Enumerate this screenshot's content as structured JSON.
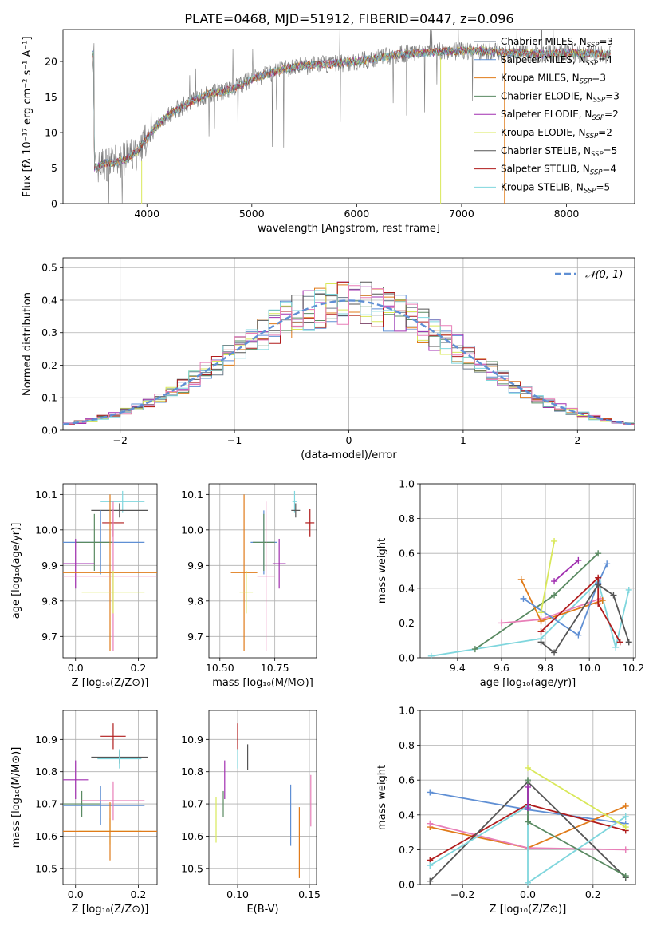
{
  "figure_title": "PLATE=0468, MJD=51912, FIBERID=0447, z=0.096",
  "colors": {
    "chabrier_miles": "#6c7a89",
    "salpeter_miles": "#5f8fd4",
    "kroupa_miles": "#e07b1a",
    "chabrier_elodie": "#5a8a62",
    "salpeter_elodie": "#a12fb0",
    "kroupa_elodie": "#d9e85a",
    "chabrier_stelib": "#555555",
    "salpeter_stelib": "#b01c1c",
    "kroupa_stelib": "#7fd6dd",
    "pink": "#e87fb8",
    "blue": "#5f8fd4",
    "normal_curve": "#5f8fd4"
  },
  "chart_data": [
    {
      "id": "spectrum",
      "type": "line",
      "title": "PLATE=0468, MJD=51912, FIBERID=0447, z=0.096",
      "xlabel": "wavelength [Angstrom, rest frame]",
      "ylabel": "Flux [fλ 10⁻¹⁷ erg cm⁻² s⁻¹ A⁻¹]",
      "xlim": [
        3200,
        8650
      ],
      "ylim": [
        0,
        24.5
      ],
      "xticks": [
        "4000",
        "5000",
        "6000",
        "7000",
        "8000"
      ],
      "yticks": [
        "0",
        "5",
        "10",
        "15",
        "20"
      ],
      "continuum": {
        "x": [
          3500,
          3600,
          3700,
          3800,
          3900,
          4000,
          4100,
          4200,
          4400,
          4600,
          4800,
          5000,
          5200,
          5400,
          5600,
          5800,
          6000,
          6200,
          6400,
          6600,
          6800,
          7000,
          7200,
          7400,
          7600,
          7800,
          8000,
          8200,
          8400
        ],
        "y": [
          5,
          5.6,
          5.8,
          6.2,
          7.2,
          9.2,
          11,
          12.5,
          14.2,
          15.5,
          16,
          17.5,
          18.5,
          19.2,
          19.5,
          19.7,
          20,
          20.5,
          21,
          21.2,
          21.4,
          21.5,
          21.5,
          21.3,
          21.2,
          21.0,
          21.2,
          21.1,
          21.0
        ]
      },
      "legend": [
        {
          "label": "Chabrier MILES, N",
          "sub": "SSP",
          "eq": "=3",
          "color": "#6c7a89"
        },
        {
          "label": "Salpeter MILES, N",
          "sub": "SSP",
          "eq": "=4",
          "color": "#5f8fd4"
        },
        {
          "label": "Kroupa MILES, N",
          "sub": "SSP",
          "eq": "=3",
          "color": "#e07b1a"
        },
        {
          "label": "Chabrier ELODIE, N",
          "sub": "SSP",
          "eq": "=3",
          "color": "#5a8a62"
        },
        {
          "label": "Salpeter ELODIE, N",
          "sub": "SSP",
          "eq": "=2",
          "color": "#a12fb0"
        },
        {
          "label": "Kroupa ELODIE, N",
          "sub": "SSP",
          "eq": "=2",
          "color": "#d9e85a"
        },
        {
          "label": "Chabrier STELIB, N",
          "sub": "SSP",
          "eq": "=5",
          "color": "#555555"
        },
        {
          "label": "Salpeter STELIB, N",
          "sub": "SSP",
          "eq": "=4",
          "color": "#b01c1c"
        },
        {
          "label": "Kroupa STELIB, N",
          "sub": "SSP",
          "eq": "=5",
          "color": "#7fd6dd"
        }
      ],
      "legend_position": "right"
    },
    {
      "id": "residuals",
      "type": "histogram",
      "xlabel": "(data-model)/error",
      "ylabel": "Normed distribution",
      "xlim": [
        -2.5,
        2.5
      ],
      "ylim": [
        0,
        0.53
      ],
      "xticks": [
        "−2",
        "−1",
        "0",
        "1",
        "2"
      ],
      "yticks": [
        "0.0",
        "0.1",
        "0.2",
        "0.3",
        "0.4",
        "0.5"
      ],
      "legend": [
        {
          "label": "𝒩(0, 1)",
          "style": "dashed",
          "color": "#5f8fd4"
        }
      ],
      "legend_position": "top-right",
      "bin_width": 0.1
    },
    {
      "id": "age_vs_Z",
      "type": "scatter",
      "xlabel": "Z [log₁₀(Z/Z⊙)]",
      "ylabel": "age  [log₁₀(age/yr)]",
      "xlim": [
        -0.04,
        0.26
      ],
      "ylim": [
        9.64,
        10.13
      ],
      "xticks": [
        "0.0",
        "0.2"
      ],
      "yticks": [
        "9.7",
        "9.8",
        "9.9",
        "10.0",
        "10.1"
      ],
      "points": [
        {
          "x": 0.15,
          "y": 10.08,
          "xerr": 0.07,
          "yerr": 0.03,
          "color": "#7fd6dd"
        },
        {
          "x": 0.14,
          "y": 10.055,
          "xerr": 0.09,
          "yerr": 0.02,
          "color": "#555555"
        },
        {
          "x": 0.12,
          "y": 10.02,
          "xerr": 0.035,
          "yerr": 0.04,
          "color": "#b01c1c"
        },
        {
          "x": 0.08,
          "y": 9.965,
          "xerr": 0.14,
          "yerr": 0.09,
          "color": "#5f8fd4"
        },
        {
          "x": 0.06,
          "y": 9.965,
          "xerr": 0.06,
          "yerr": 0.08,
          "color": "#5a8a62"
        },
        {
          "x": 0.0,
          "y": 9.905,
          "xerr": 0.06,
          "yerr": 0.07,
          "color": "#a12fb0"
        },
        {
          "x": 0.11,
          "y": 9.88,
          "xerr": 0.25,
          "yerr": 0.22,
          "color": "#e07b1a"
        },
        {
          "x": 0.12,
          "y": 9.87,
          "xerr": 0.24,
          "yerr": 0.21,
          "color": "#e87fb8"
        },
        {
          "x": 0.12,
          "y": 9.825,
          "xerr": 0.1,
          "yerr": 0.06,
          "color": "#d9e85a"
        }
      ]
    },
    {
      "id": "age_vs_mass",
      "type": "scatter",
      "xlabel": "mass [log₁₀(M/M⊙)]",
      "ylabel": "",
      "xlim": [
        10.45,
        10.94
      ],
      "ylim": [
        9.64,
        10.13
      ],
      "xticks": [
        "10.50",
        "10.75"
      ],
      "yticks": [
        "9.7",
        "9.8",
        "9.9",
        "10.0",
        "10.1"
      ],
      "points": [
        {
          "x": 10.84,
          "y": 10.08,
          "xerr": 0.01,
          "yerr": 0.03,
          "color": "#7fd6dd"
        },
        {
          "x": 10.845,
          "y": 10.055,
          "xerr": 0.02,
          "yerr": 0.02,
          "color": "#555555"
        },
        {
          "x": 10.91,
          "y": 10.02,
          "xerr": 0.02,
          "yerr": 0.04,
          "color": "#b01c1c"
        },
        {
          "x": 10.7,
          "y": 9.965,
          "xerr": 0.06,
          "yerr": 0.09,
          "color": "#5f8fd4"
        },
        {
          "x": 10.7,
          "y": 9.965,
          "xerr": 0.05,
          "yerr": 0.08,
          "color": "#5a8a62"
        },
        {
          "x": 10.77,
          "y": 9.905,
          "xerr": 0.03,
          "yerr": 0.07,
          "color": "#a12fb0"
        },
        {
          "x": 10.61,
          "y": 9.88,
          "xerr": 0.06,
          "yerr": 0.22,
          "color": "#e07b1a"
        },
        {
          "x": 10.71,
          "y": 9.87,
          "xerr": 0.04,
          "yerr": 0.21,
          "color": "#e87fb8"
        },
        {
          "x": 10.62,
          "y": 9.825,
          "xerr": 0.03,
          "yerr": 0.06,
          "color": "#d9e85a"
        }
      ]
    },
    {
      "id": "weight_vs_age",
      "type": "line",
      "xlabel": "age  [log₁₀(age/yr)]",
      "ylabel": "mass weight",
      "xlim": [
        9.23,
        10.21
      ],
      "ylim": [
        0,
        1
      ],
      "xticks": [
        "9.4",
        "9.6",
        "9.8",
        "10.0",
        "10.2"
      ],
      "yticks": [
        "0.0",
        "0.2",
        "0.4",
        "0.6",
        "0.8",
        "1.0"
      ],
      "series": [
        {
          "color": "#7fd6dd",
          "x": [
            9.28,
            9.78,
            10.04,
            10.12,
            10.18
          ],
          "y": [
            0.01,
            0.11,
            0.44,
            0.06,
            0.39
          ]
        },
        {
          "color": "#5a8a62",
          "x": [
            9.48,
            9.84,
            10.04
          ],
          "y": [
            0.05,
            0.36,
            0.6
          ]
        },
        {
          "color": "#e87fb8",
          "x": [
            9.6,
            9.78,
            10.05
          ],
          "y": [
            0.2,
            0.22,
            0.34
          ]
        },
        {
          "color": "#e07b1a",
          "x": [
            9.69,
            9.78,
            10.06
          ],
          "y": [
            0.45,
            0.21,
            0.33
          ]
        },
        {
          "color": "#5f8fd4",
          "x": [
            9.7,
            9.95,
            10.04,
            10.08
          ],
          "y": [
            0.34,
            0.13,
            0.43,
            0.54
          ]
        },
        {
          "color": "#b01c1c",
          "x": [
            9.78,
            10.04,
            10.04,
            10.14
          ],
          "y": [
            0.15,
            0.46,
            0.31,
            0.09
          ]
        },
        {
          "color": "#555555",
          "x": [
            9.78,
            9.84,
            10.04,
            10.11,
            10.18
          ],
          "y": [
            0.09,
            0.03,
            0.42,
            0.36,
            0.09
          ]
        },
        {
          "color": "#a12fb0",
          "x": [
            9.84,
            9.95
          ],
          "y": [
            0.44,
            0.56
          ]
        },
        {
          "color": "#d9e85a",
          "x": [
            9.78,
            9.84
          ],
          "y": [
            0.26,
            0.67
          ]
        }
      ]
    },
    {
      "id": "mass_vs_Z",
      "type": "scatter",
      "xlabel": "Z [log₁₀(Z/Z⊙)]",
      "ylabel": "mass [log₁₀(M/M⊙)]",
      "xlim": [
        -0.04,
        0.26
      ],
      "ylim": [
        10.45,
        10.99
      ],
      "xticks": [
        "0.0",
        "0.2"
      ],
      "yticks": [
        "10.5",
        "10.6",
        "10.7",
        "10.8",
        "10.9"
      ],
      "points": [
        {
          "x": 0.12,
          "y": 10.91,
          "xerr": 0.04,
          "yerr": 0.04,
          "color": "#b01c1c"
        },
        {
          "x": 0.14,
          "y": 10.845,
          "xerr": 0.09,
          "yerr": 0.02,
          "color": "#555555"
        },
        {
          "x": 0.14,
          "y": 10.84,
          "xerr": 0.07,
          "yerr": 0.03,
          "color": "#7fd6dd"
        },
        {
          "x": 0.0,
          "y": 10.775,
          "xerr": 0.04,
          "yerr": 0.06,
          "color": "#a12fb0"
        },
        {
          "x": 0.02,
          "y": 10.7,
          "xerr": 0.06,
          "yerr": 0.04,
          "color": "#5a8a62"
        },
        {
          "x": 0.08,
          "y": 10.695,
          "xerr": 0.14,
          "yerr": 0.06,
          "color": "#5f8fd4"
        },
        {
          "x": 0.12,
          "y": 10.71,
          "xerr": 0.1,
          "yerr": 0.06,
          "color": "#e87fb8"
        },
        {
          "x": 0.11,
          "y": 10.615,
          "xerr": 0.1,
          "yerr": 0.04,
          "color": "#d9e85a"
        },
        {
          "x": 0.11,
          "y": 10.615,
          "xerr": 0.25,
          "yerr": 0.09,
          "color": "#e07b1a"
        }
      ]
    },
    {
      "id": "mass_vs_EBV",
      "type": "scatter",
      "xlabel": "E(B-V)",
      "ylabel": "",
      "xlim": [
        0.08,
        0.155
      ],
      "ylim": [
        10.45,
        10.99
      ],
      "xticks": [
        "0.10",
        "0.15"
      ],
      "yticks": [
        "10.5",
        "10.6",
        "10.7",
        "10.8",
        "10.9"
      ],
      "points": [
        {
          "x": 0.1,
          "y": 10.91,
          "xerr": 0,
          "yerr": 0.04,
          "color": "#b01c1c"
        },
        {
          "x": 0.107,
          "y": 10.845,
          "xerr": 0,
          "yerr": 0.04,
          "color": "#555555"
        },
        {
          "x": 0.1,
          "y": 10.84,
          "xerr": 0,
          "yerr": 0.03,
          "color": "#7fd6dd"
        },
        {
          "x": 0.091,
          "y": 10.775,
          "xerr": 0,
          "yerr": 0.06,
          "color": "#a12fb0"
        },
        {
          "x": 0.09,
          "y": 10.7,
          "xerr": 0,
          "yerr": 0.04,
          "color": "#5a8a62"
        },
        {
          "x": 0.137,
          "y": 10.665,
          "xerr": 0,
          "yerr": 0.095,
          "color": "#5f8fd4"
        },
        {
          "x": 0.143,
          "y": 10.58,
          "xerr": 0,
          "yerr": 0.11,
          "color": "#e07b1a"
        },
        {
          "x": 0.151,
          "y": 10.71,
          "xerr": 0,
          "yerr": 0.08,
          "color": "#e87fb8"
        },
        {
          "x": 0.085,
          "y": 10.65,
          "xerr": 0,
          "yerr": 0.07,
          "color": "#d9e85a"
        }
      ]
    },
    {
      "id": "weight_vs_Z",
      "type": "line",
      "xlabel": "Z [log₁₀(Z/Z⊙)]",
      "ylabel": "mass weight",
      "xlim": [
        -0.33,
        0.33
      ],
      "ylim": [
        0,
        1
      ],
      "xticks": [
        "−0.2",
        "0.0",
        "0.2"
      ],
      "yticks": [
        "0.0",
        "0.2",
        "0.4",
        "0.6",
        "0.8",
        "1.0"
      ],
      "series": [
        {
          "color": "#5f8fd4",
          "x": [
            -0.3,
            0.0,
            0.3
          ],
          "y": [
            0.53,
            0.43,
            0.35
          ]
        },
        {
          "color": "#e07b1a",
          "x": [
            -0.3,
            0.0,
            0.3
          ],
          "y": [
            0.33,
            0.21,
            0.45
          ]
        },
        {
          "color": "#e87fb8",
          "x": [
            -0.3,
            0.0,
            0.3
          ],
          "y": [
            0.35,
            0.21,
            0.2
          ]
        },
        {
          "color": "#b01c1c",
          "x": [
            -0.3,
            0.0,
            0.3
          ],
          "y": [
            0.14,
            0.46,
            0.31
          ]
        },
        {
          "color": "#555555",
          "x": [
            -0.3,
            0.0,
            0.3
          ],
          "y": [
            0.02,
            0.59,
            0.04
          ]
        },
        {
          "color": "#7fd6dd",
          "x": [
            -0.3,
            0.0,
            0.0,
            0.3
          ],
          "y": [
            0.11,
            0.45,
            0.01,
            0.39
          ]
        },
        {
          "color": "#5a8a62",
          "x": [
            0.0,
            0.0,
            0.3
          ],
          "y": [
            0.6,
            0.36,
            0.05
          ]
        },
        {
          "color": "#d9e85a",
          "x": [
            0.0,
            0.3
          ],
          "y": [
            0.67,
            0.33
          ]
        },
        {
          "color": "#a12fb0",
          "x": [
            0.0,
            0.0
          ],
          "y": [
            0.44,
            0.56
          ]
        }
      ]
    }
  ]
}
